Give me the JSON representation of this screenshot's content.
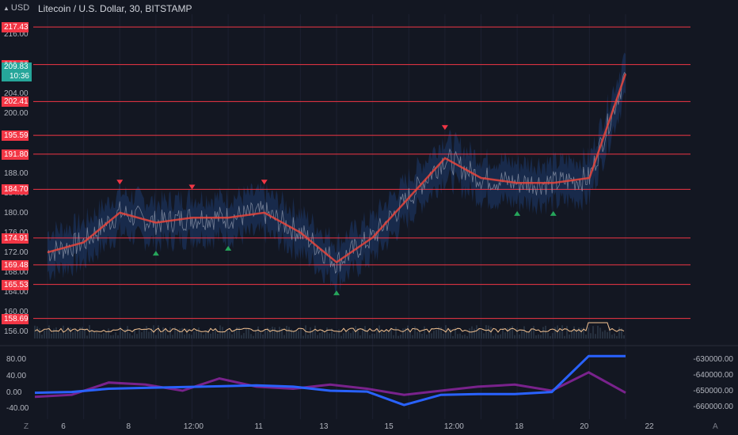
{
  "header": {
    "currency_toggle": "USD",
    "symbol_title": "Litecoin / U.S. Dollar, 30, BITSTAMP"
  },
  "price_axis": {
    "ticks": [
      "216.00",
      "204.00",
      "200.00",
      "196.00",
      "192.00",
      "188.00",
      "184.00",
      "180.00",
      "176.00",
      "172.00",
      "168.00",
      "164.00",
      "160.00",
      "156.00"
    ],
    "current_price": "209.83",
    "countdown": "10:36"
  },
  "levels": [
    "217.43",
    "209.86",
    "202.41",
    "195.59",
    "191.80",
    "184.70",
    "174.91",
    "169.48",
    "165.53",
    "158.69"
  ],
  "oscillator": {
    "left_ticks": [
      "80.00",
      "40.00",
      "0.00",
      "-40.00"
    ],
    "right_ticks": [
      "-630000.00",
      "-640000.00",
      "-650000.00",
      "-660000.00"
    ]
  },
  "time_axis": {
    "labels": [
      "6",
      "8",
      "12:00",
      "11",
      "13",
      "15",
      "12:00",
      "18",
      "20",
      "22"
    ]
  },
  "bottom_corners": {
    "left": "Z",
    "right": "A"
  },
  "colors": {
    "background": "#131722",
    "level_line": "#f23645",
    "ma_line": "#e8453c",
    "band": "#1e3a6e",
    "up_marker": "#26a65b",
    "down_marker": "#f23645",
    "volume_line": "#f5c493",
    "osc_purple": "#9c27b0",
    "osc_blue": "#2962ff",
    "current_price_bg": "#26a69a"
  },
  "chart_data": {
    "type": "line",
    "title": "Litecoin / U.S. Dollar, 30, BITSTAMP",
    "x": [
      "5",
      "6",
      "7",
      "8",
      "9",
      "10",
      "11",
      "12",
      "13",
      "14",
      "15",
      "16",
      "17",
      "18",
      "19",
      "20",
      "21"
    ],
    "series": [
      {
        "values": [
          172,
          174,
          180,
          178,
          179,
          179,
          180,
          176,
          170,
          175,
          183,
          191,
          187,
          186,
          186,
          187,
          208
        ]
      }
    ],
    "ylim": [
      154,
      220
    ],
    "horizontal_levels": [
      217.43,
      209.86,
      202.41,
      195.59,
      191.8,
      184.7,
      174.91,
      169.48,
      165.53,
      158.69
    ],
    "oscillator": {
      "ylim_left": [
        -55,
        100
      ],
      "ylim_right": [
        -665000,
        -625000
      ],
      "purple": [
        -10,
        -5,
        25,
        20,
        5,
        35,
        15,
        10,
        20,
        10,
        -5,
        5,
        15,
        20,
        5,
        50,
        0
      ],
      "blue": [
        0,
        2,
        10,
        12,
        14,
        16,
        18,
        15,
        5,
        3,
        -30,
        -5,
        -3,
        -3,
        2,
        90,
        90
      ]
    }
  }
}
